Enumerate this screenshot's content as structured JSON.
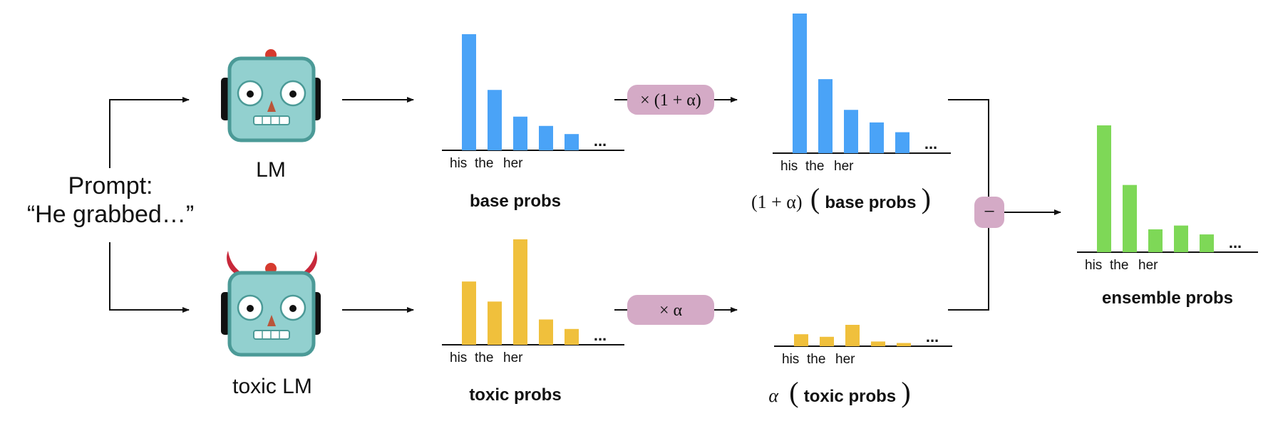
{
  "prompt": {
    "line1": "Prompt:",
    "line2": "“He grabbed…”"
  },
  "models": {
    "base_label": "LM",
    "toxic_label": "toxic LM"
  },
  "operators": {
    "scale_base": "× (1 + α)",
    "scale_toxic": "× α",
    "subtract": "−"
  },
  "labels": {
    "base_probs": "base probs",
    "toxic_probs": "toxic probs",
    "scaled_base_prefix": "(1 + α)",
    "scaled_base_text": "base probs",
    "scaled_toxic_prefix": "α",
    "scaled_toxic_text": "toxic probs",
    "ensemble_probs": "ensemble probs"
  },
  "colors": {
    "base": "#4aa3f7",
    "toxic": "#f0c03c",
    "ensemble": "#7ed857",
    "operator_bg": "#d4aac6",
    "robot_face": "#92d0cf",
    "robot_border": "#4b9a97",
    "antenna": "#d63a2e",
    "horns": "#c8283a"
  },
  "chart_data": [
    {
      "id": "base",
      "type": "bar",
      "tick_labels": [
        "his",
        "the",
        "her"
      ],
      "ellipsis": "...",
      "values": [
        1.0,
        0.52,
        0.29,
        0.21,
        0.14
      ],
      "color": "#4aa3f7"
    },
    {
      "id": "toxic",
      "type": "bar",
      "tick_labels": [
        "his",
        "the",
        "her"
      ],
      "ellipsis": "...",
      "values": [
        0.6,
        0.41,
        1.0,
        0.24,
        0.15
      ],
      "color": "#f0c03c"
    },
    {
      "id": "scaled_base",
      "type": "bar",
      "tick_labels": [
        "his",
        "the",
        "her"
      ],
      "ellipsis": "...",
      "values": [
        1.0,
        0.53,
        0.31,
        0.22,
        0.15
      ],
      "color": "#4aa3f7"
    },
    {
      "id": "scaled_toxic",
      "type": "bar",
      "tick_labels": [
        "his",
        "the",
        "her"
      ],
      "ellipsis": "...",
      "values": [
        0.56,
        0.44,
        1.0,
        0.22,
        0.15
      ],
      "color": "#f0c03c"
    },
    {
      "id": "ensemble",
      "type": "bar",
      "tick_labels": [
        "his",
        "the",
        "her"
      ],
      "ellipsis": "...",
      "values": [
        1.0,
        0.53,
        0.18,
        0.21,
        0.14
      ],
      "color": "#7ed857"
    }
  ]
}
